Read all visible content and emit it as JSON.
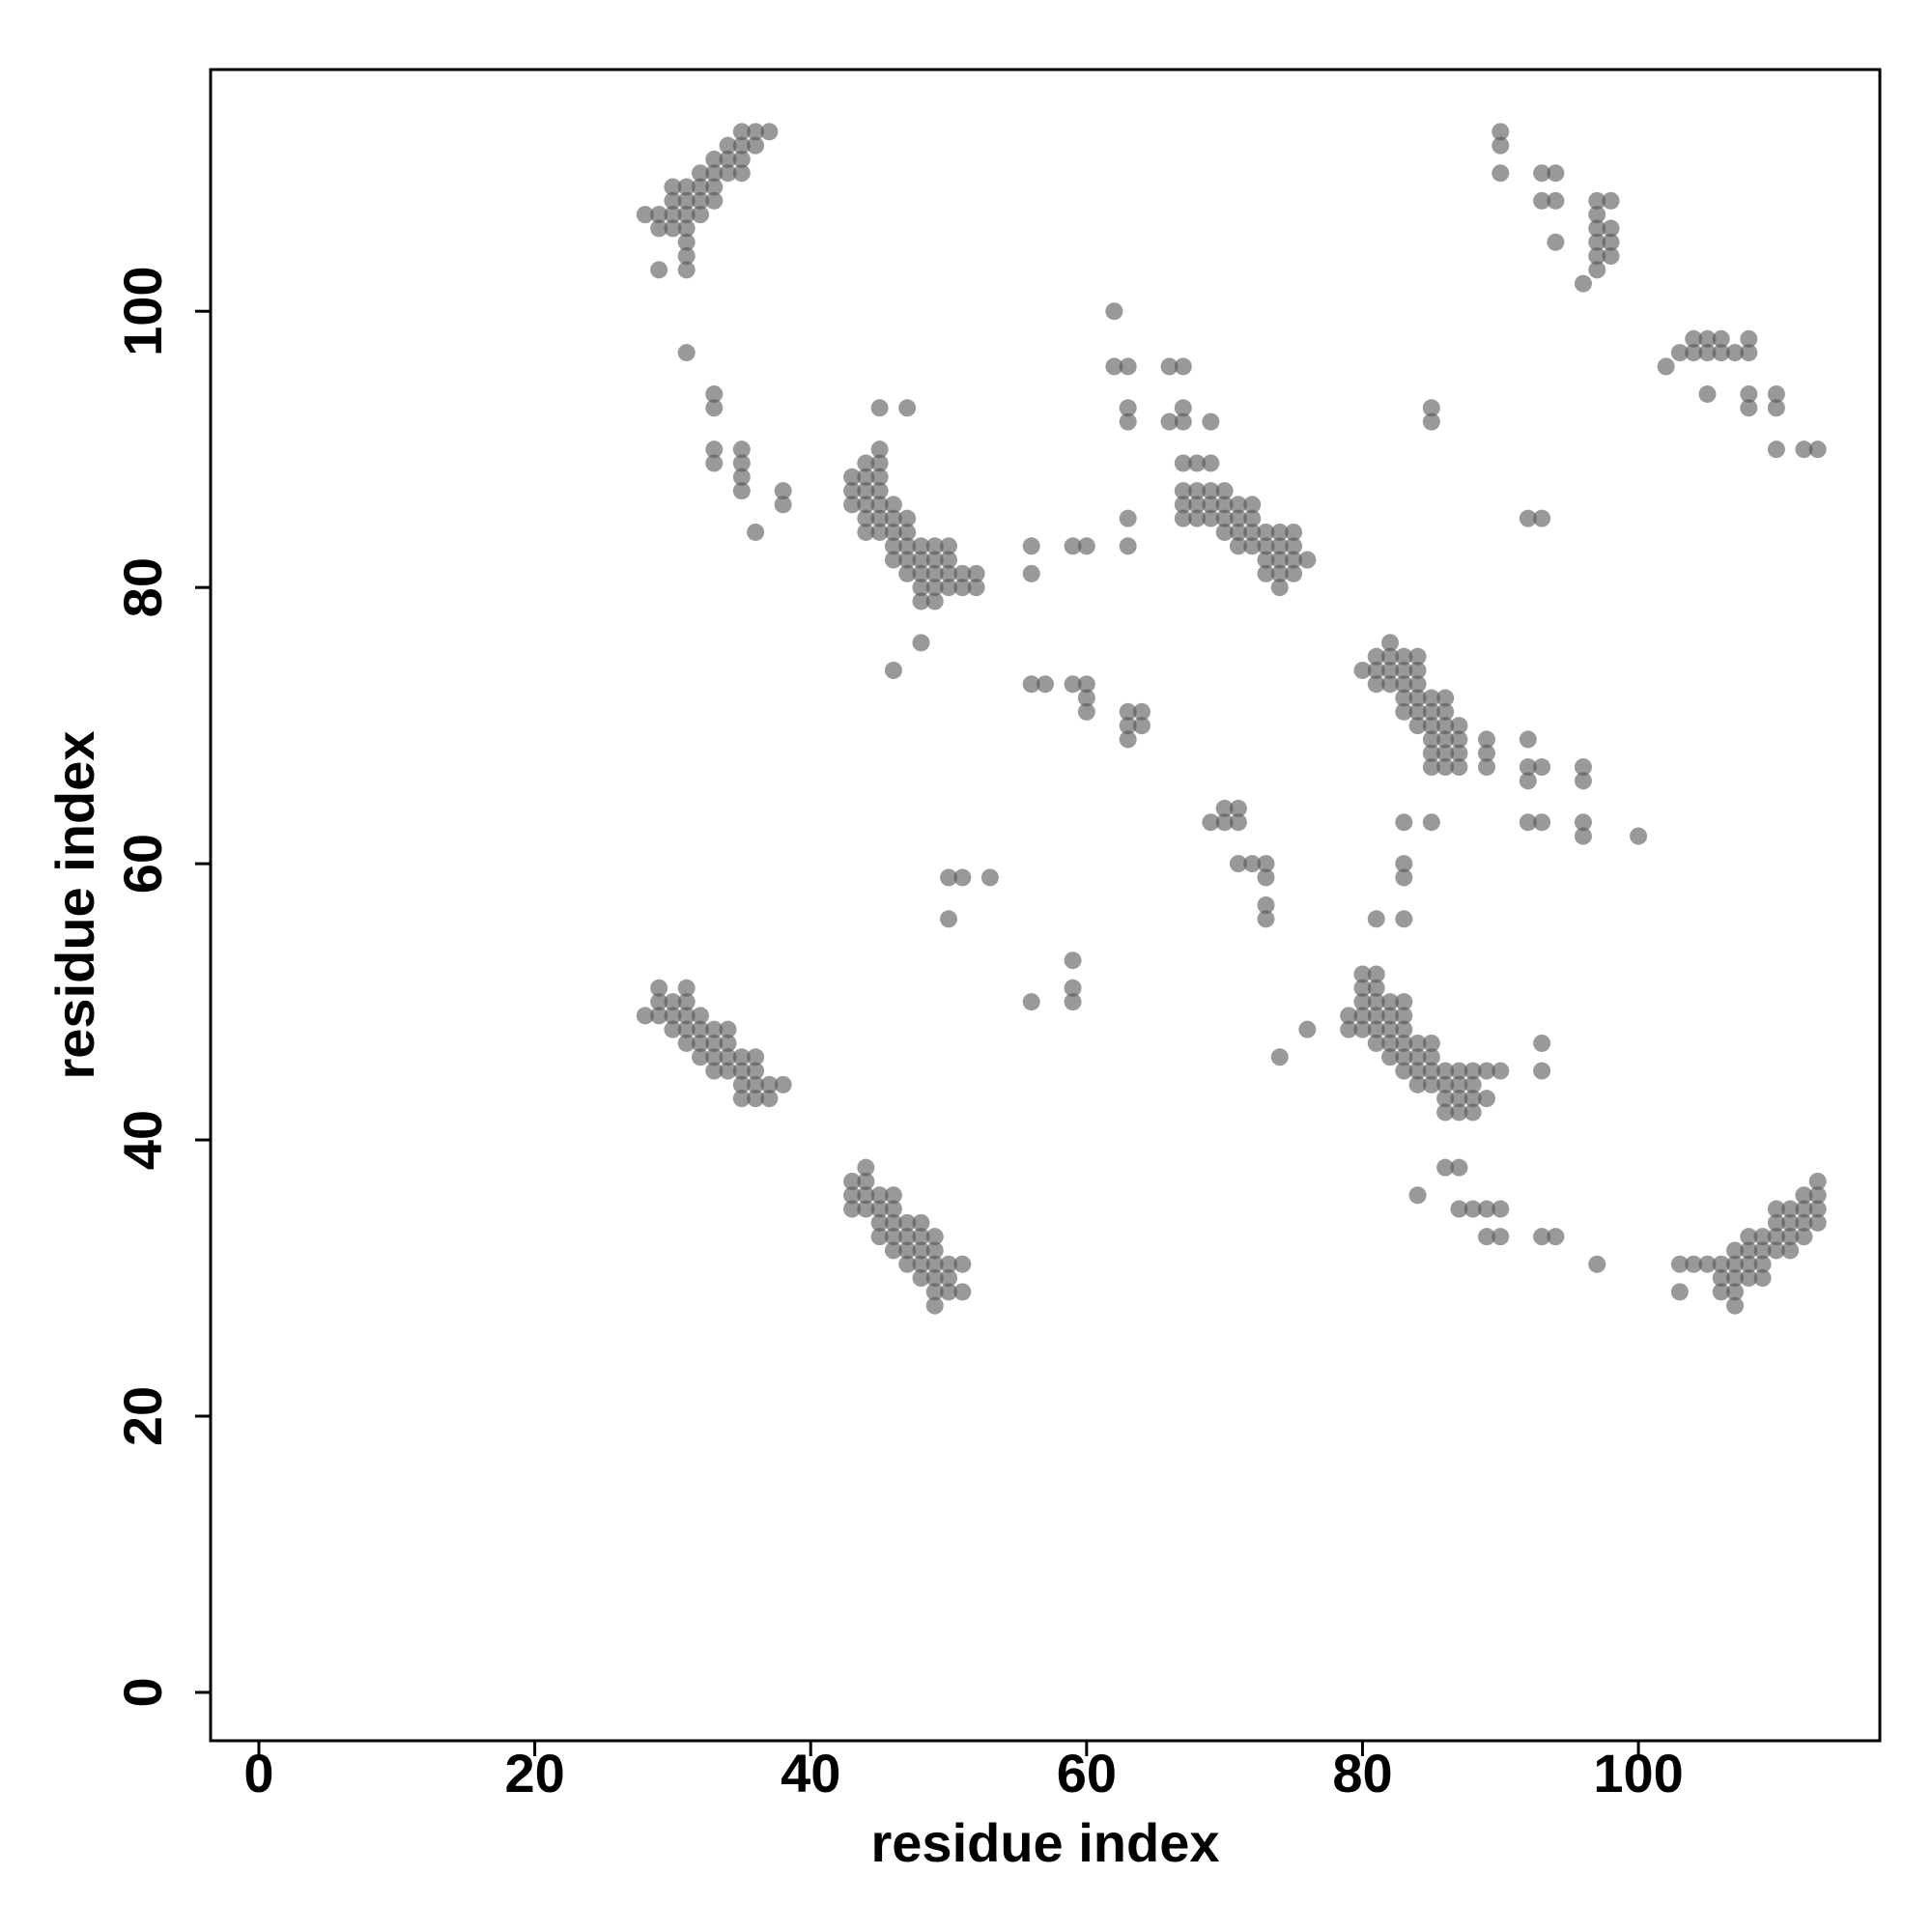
{
  "chart_data": {
    "type": "scatter",
    "xlabel": "residue index",
    "ylabel": "residue index",
    "color": "#555555",
    "xlim": [
      -3.5,
      117.5
    ],
    "ylim": [
      -3.5,
      117.5
    ],
    "xticks": [
      0,
      20,
      40,
      60,
      80,
      100
    ],
    "yticks": [
      0,
      20,
      40,
      60,
      80,
      100
    ],
    "x": [
      28,
      29,
      29,
      29,
      30,
      30,
      30,
      30,
      31,
      31,
      31,
      31,
      31,
      31,
      31,
      32,
      32,
      32,
      32,
      33,
      33,
      33,
      33,
      34,
      34,
      34,
      35,
      35,
      35,
      35,
      36,
      36,
      37,
      31,
      33,
      33,
      33,
      33,
      35,
      35,
      35,
      35,
      36,
      38,
      38,
      43,
      43,
      43,
      44,
      44,
      44,
      44,
      45,
      45,
      45,
      45,
      45,
      45,
      45,
      45,
      44,
      44,
      46,
      46,
      46,
      46,
      46,
      47,
      47,
      47,
      47,
      47,
      47,
      48,
      48,
      48,
      48,
      48,
      49,
      49,
      49,
      49,
      49,
      50,
      50,
      50,
      50,
      51,
      51,
      52,
      52,
      48,
      46,
      56,
      56,
      59,
      60,
      62,
      62,
      63,
      63,
      63,
      63,
      63,
      66,
      67,
      66,
      67,
      67,
      69,
      56,
      57,
      59,
      60,
      60,
      60,
      63,
      63,
      63,
      64,
      64,
      50,
      51,
      53,
      50,
      56,
      59,
      59,
      59,
      67,
      67,
      67,
      67,
      68,
      68,
      68,
      68,
      69,
      69,
      69,
      69,
      70,
      70,
      70,
      70,
      71,
      71,
      71,
      71,
      72,
      72,
      72,
      72,
      73,
      73,
      73,
      73,
      74,
      74,
      74,
      74,
      74,
      75,
      75,
      75,
      75,
      76,
      69,
      70,
      70,
      71,
      71,
      71,
      72,
      73,
      73,
      73,
      73,
      74,
      76,
      80,
      81,
      81,
      81,
      82,
      82,
      82,
      82,
      83,
      83,
      83,
      83,
      83,
      84,
      84,
      84,
      84,
      84,
      84,
      85,
      85,
      85,
      85,
      85,
      85,
      86,
      86,
      86,
      86,
      86,
      86,
      87,
      87,
      87,
      87,
      89,
      89,
      89,
      92,
      92,
      92,
      93,
      96,
      96,
      92,
      93,
      96,
      96,
      100,
      83,
      85,
      83,
      83,
      81,
      83,
      79,
      79,
      80,
      80,
      80,
      80,
      80,
      81,
      81,
      81,
      81,
      81,
      81,
      82,
      82,
      82,
      82,
      82,
      83,
      83,
      83,
      83,
      83,
      83,
      84,
      84,
      84,
      84,
      85,
      85,
      85,
      85,
      86,
      86,
      86,
      86,
      87,
      87,
      87,
      87,
      88,
      88,
      88,
      88,
      89,
      89,
      90,
      93,
      93,
      84,
      86,
      87,
      87,
      88,
      89,
      89,
      90,
      90,
      93,
      94,
      97,
      103,
      103,
      104,
      105,
      106,
      106,
      106,
      107,
      107,
      107,
      107,
      107,
      108,
      108,
      108,
      108,
      109,
      109,
      109,
      109,
      110,
      110,
      110,
      110,
      111,
      111,
      111,
      111,
      112,
      112,
      112,
      112,
      113,
      113,
      113,
      113,
      43,
      43,
      43,
      44,
      44,
      44,
      44,
      45,
      45,
      45,
      45,
      46,
      46,
      46,
      46,
      46,
      47,
      47,
      47,
      47,
      48,
      48,
      48,
      48,
      48,
      49,
      49,
      49,
      49,
      49,
      49,
      50,
      50,
      50,
      51,
      51,
      28,
      29,
      29,
      29,
      30,
      30,
      30,
      31,
      31,
      31,
      31,
      31,
      32,
      32,
      32,
      32,
      33,
      33,
      33,
      33,
      34,
      34,
      34,
      34,
      35,
      35,
      35,
      35,
      36,
      36,
      36,
      36,
      37,
      37,
      38,
      90,
      90,
      90,
      93,
      93,
      94,
      94,
      94,
      96,
      97,
      97,
      97,
      97,
      97,
      97,
      98,
      98,
      98,
      98,
      85,
      85,
      92,
      93,
      102,
      103,
      104,
      104,
      105,
      105,
      105,
      106,
      106,
      107,
      108,
      108,
      108,
      108,
      110,
      110,
      110,
      112,
      113
    ],
    "values": [
      107,
      107,
      106,
      103,
      108,
      107,
      106,
      109,
      109,
      108,
      107,
      106,
      105,
      104,
      103,
      110,
      109,
      108,
      107,
      111,
      110,
      109,
      108,
      112,
      111,
      110,
      113,
      112,
      111,
      110,
      113,
      112,
      113,
      97,
      94,
      93,
      90,
      89,
      90,
      89,
      88,
      87,
      84,
      87,
      86,
      88,
      87,
      86,
      89,
      88,
      87,
      86,
      90,
      89,
      88,
      87,
      86,
      85,
      84,
      93,
      85,
      84,
      86,
      85,
      84,
      83,
      82,
      85,
      84,
      83,
      82,
      81,
      93,
      83,
      82,
      81,
      80,
      79,
      83,
      82,
      81,
      80,
      79,
      83,
      82,
      81,
      80,
      81,
      80,
      81,
      80,
      76,
      74,
      83,
      81,
      83,
      83,
      100,
      96,
      96,
      93,
      92,
      85,
      83,
      96,
      96,
      92,
      93,
      92,
      92,
      73,
      73,
      73,
      73,
      72,
      71,
      71,
      70,
      69,
      71,
      70,
      59,
      59,
      59,
      56,
      50,
      53,
      51,
      50,
      89,
      87,
      86,
      85,
      89,
      87,
      86,
      85,
      89,
      87,
      86,
      85,
      87,
      86,
      85,
      84,
      86,
      85,
      84,
      83,
      86,
      85,
      84,
      83,
      84,
      83,
      82,
      81,
      84,
      83,
      82,
      81,
      80,
      84,
      83,
      82,
      81,
      82,
      63,
      64,
      63,
      64,
      63,
      60,
      60,
      60,
      59,
      57,
      56,
      46,
      48,
      74,
      75,
      74,
      73,
      76,
      75,
      74,
      73,
      75,
      74,
      73,
      72,
      71,
      75,
      74,
      73,
      72,
      71,
      70,
      72,
      71,
      70,
      69,
      68,
      67,
      72,
      71,
      70,
      69,
      68,
      67,
      70,
      69,
      68,
      67,
      69,
      68,
      67,
      69,
      67,
      66,
      67,
      67,
      66,
      63,
      63,
      63,
      62,
      62,
      63,
      63,
      60,
      59,
      56,
      56,
      49,
      48,
      52,
      51,
      50,
      49,
      48,
      52,
      51,
      50,
      49,
      48,
      47,
      50,
      49,
      48,
      47,
      46,
      50,
      49,
      48,
      47,
      46,
      45,
      47,
      46,
      45,
      44,
      47,
      46,
      45,
      44,
      45,
      44,
      43,
      42,
      45,
      44,
      43,
      42,
      45,
      44,
      43,
      42,
      45,
      43,
      45,
      47,
      45,
      36,
      38,
      38,
      35,
      35,
      35,
      33,
      35,
      33,
      33,
      33,
      31,
      31,
      29,
      31,
      31,
      31,
      30,
      29,
      32,
      31,
      30,
      29,
      28,
      33,
      32,
      31,
      30,
      33,
      32,
      31,
      30,
      35,
      34,
      33,
      32,
      35,
      34,
      33,
      32,
      36,
      35,
      34,
      33,
      37,
      36,
      35,
      34,
      37,
      36,
      35,
      38,
      37,
      36,
      35,
      36,
      35,
      34,
      33,
      36,
      35,
      34,
      33,
      32,
      34,
      33,
      32,
      31,
      34,
      33,
      32,
      31,
      30,
      33,
      32,
      31,
      30,
      29,
      28,
      31,
      30,
      29,
      31,
      29,
      49,
      51,
      50,
      49,
      50,
      49,
      48,
      51,
      50,
      49,
      48,
      47,
      49,
      48,
      47,
      46,
      48,
      47,
      46,
      45,
      48,
      47,
      46,
      45,
      46,
      45,
      44,
      43,
      46,
      45,
      44,
      43,
      44,
      43,
      44,
      113,
      112,
      110,
      110,
      108,
      110,
      108,
      105,
      102,
      108,
      107,
      106,
      105,
      104,
      103,
      108,
      106,
      105,
      104,
      93,
      92,
      85,
      85,
      96,
      97,
      98,
      97,
      98,
      97,
      94,
      98,
      97,
      97,
      98,
      97,
      94,
      93,
      94,
      93,
      90,
      90,
      90
    ]
  }
}
